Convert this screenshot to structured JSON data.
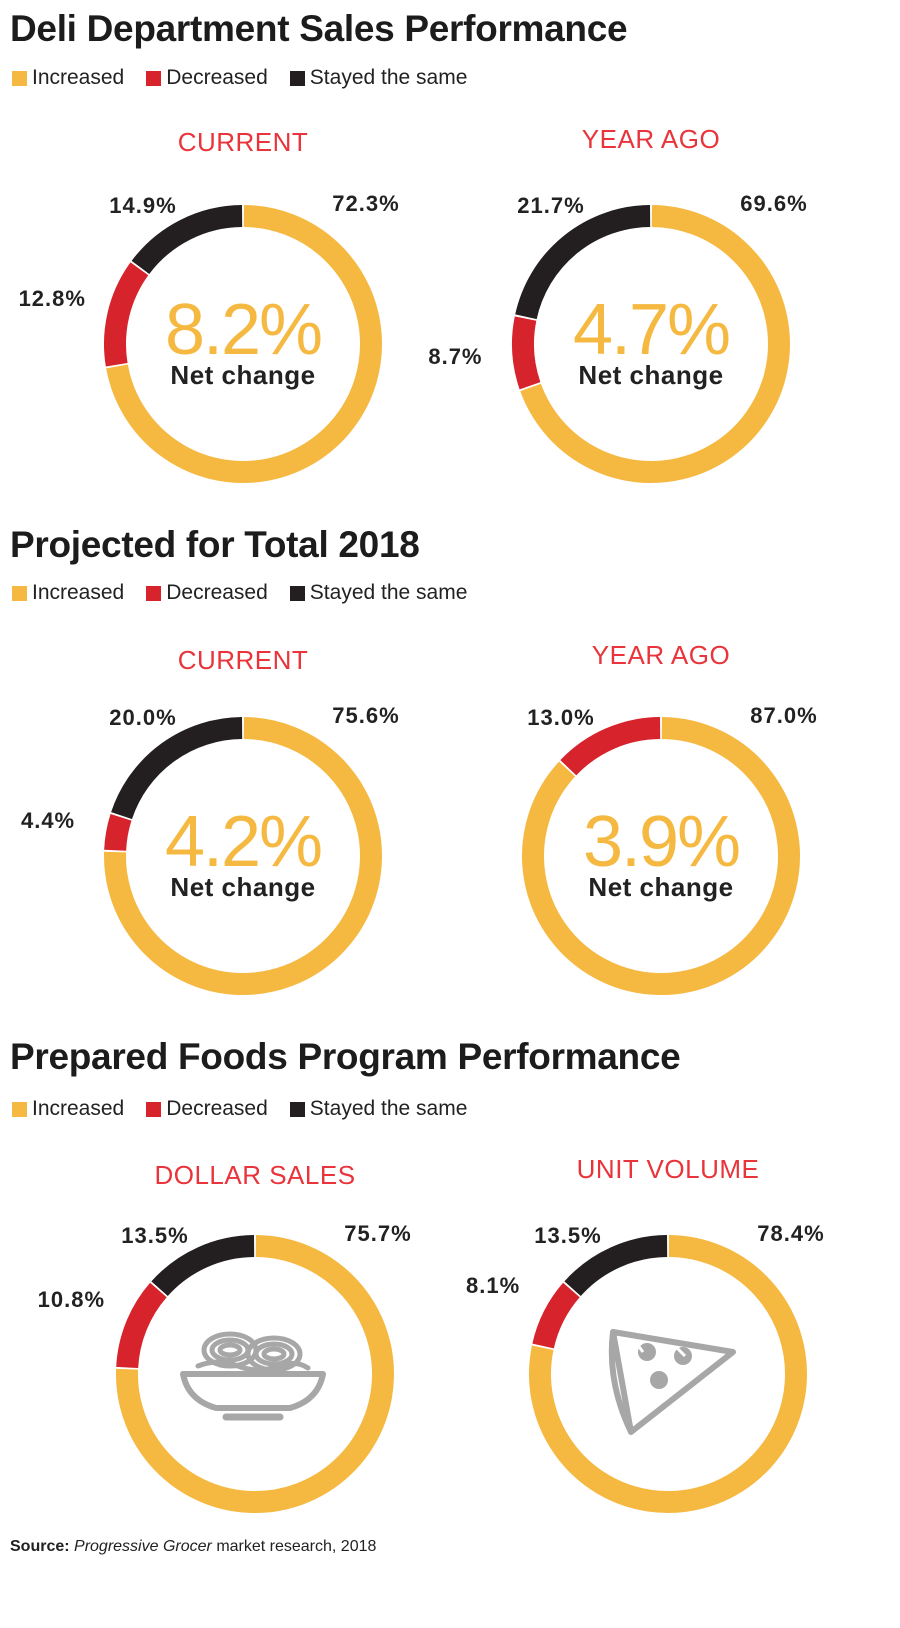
{
  "colors": {
    "increased": "#f5b942",
    "decreased": "#d7232c",
    "same": "#231f20",
    "chart_title": "#e8343a",
    "center_value": "#f5b942"
  },
  "legend": {
    "increased": "Increased",
    "decreased": "Decreased",
    "same": "Stayed the same"
  },
  "sections": [
    {
      "title": "Deli Department Sales Performance"
    },
    {
      "title": "Projected for Total 2018"
    },
    {
      "title": "Prepared Foods Program Performance"
    }
  ],
  "source": {
    "label": "Source:",
    "publication": "Progressive Grocer",
    "rest": "market research, 2018"
  },
  "chart_data": [
    {
      "type": "pie",
      "section": "Deli Department Sales Performance",
      "title": "CURRENT",
      "categories": [
        "Increased",
        "Decreased",
        "Stayed the same"
      ],
      "values": [
        72.3,
        12.8,
        14.9
      ],
      "labels": [
        "72.3%",
        "12.8%",
        "14.9%"
      ],
      "center_value": "8.2%",
      "center_label": "Net change"
    },
    {
      "type": "pie",
      "section": "Deli Department Sales Performance",
      "title": "YEAR AGO",
      "categories": [
        "Increased",
        "Decreased",
        "Stayed the same"
      ],
      "values": [
        69.6,
        8.7,
        21.7
      ],
      "labels": [
        "69.6%",
        "8.7%",
        "21.7%"
      ],
      "center_value": "4.7%",
      "center_label": "Net change"
    },
    {
      "type": "pie",
      "section": "Projected for Total 2018",
      "title": "CURRENT",
      "categories": [
        "Increased",
        "Decreased",
        "Stayed the same"
      ],
      "values": [
        75.6,
        4.4,
        20.0
      ],
      "labels": [
        "75.6%",
        "4.4%",
        "20.0%"
      ],
      "center_value": "4.2%",
      "center_label": "Net change"
    },
    {
      "type": "pie",
      "section": "Projected for Total 2018",
      "title": "YEAR AGO",
      "categories": [
        "Increased",
        "Decreased"
      ],
      "values": [
        87.0,
        13.0
      ],
      "labels": [
        "87.0%",
        "13.0%"
      ],
      "center_value": "3.9%",
      "center_label": "Net change"
    },
    {
      "type": "pie",
      "section": "Prepared Foods Program Performance",
      "title": "DOLLAR SALES",
      "categories": [
        "Increased",
        "Decreased",
        "Stayed the same"
      ],
      "values": [
        75.7,
        10.8,
        13.5
      ],
      "labels": [
        "75.7%",
        "10.8%",
        "13.5%"
      ],
      "center_icon": "noodle-bowl-icon"
    },
    {
      "type": "pie",
      "section": "Prepared Foods Program Performance",
      "title": "UNIT VOLUME",
      "categories": [
        "Increased",
        "Decreased",
        "Stayed the same"
      ],
      "values": [
        78.4,
        8.1,
        13.5
      ],
      "labels": [
        "78.4%",
        "8.1%",
        "13.5%"
      ],
      "center_icon": "pizza-slice-icon"
    }
  ]
}
